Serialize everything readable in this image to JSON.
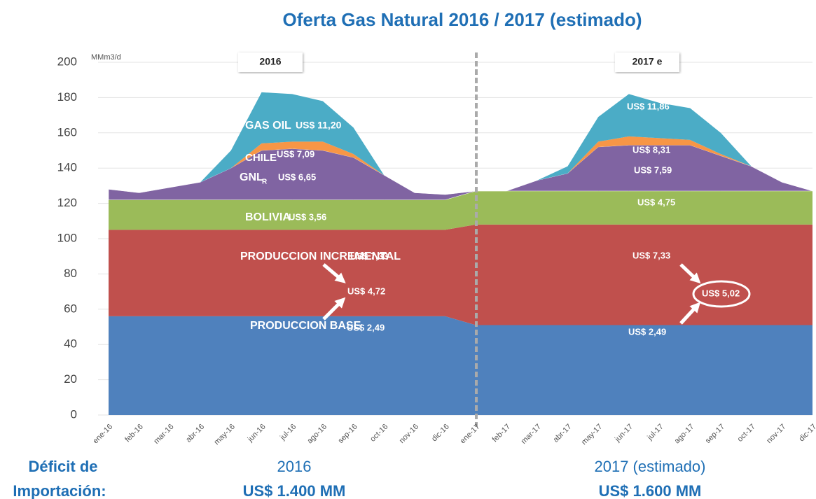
{
  "chart_data": {
    "type": "stacked-area",
    "title": "Oferta Gas Natural 2016 / 2017 (estimado)",
    "categories": [
      "ene-16",
      "feb-16",
      "mar-16",
      "abr-16",
      "may-16",
      "jun-16",
      "jul-16",
      "ago-16",
      "sep-16",
      "oct-16",
      "nov-16",
      "dic-16",
      "ene-17",
      "feb-17",
      "mar-17",
      "abr-17",
      "may-17",
      "jun-17",
      "jul-17",
      "ago-17",
      "sep-17",
      "oct-17",
      "nov-17",
      "dic-17"
    ],
    "series": [
      {
        "name": "PRODUCCION BASE",
        "color": "#4f81bd",
        "values": [
          56,
          56,
          56,
          56,
          56,
          56,
          56,
          56,
          56,
          56,
          56,
          56,
          51,
          51,
          51,
          51,
          51,
          51,
          51,
          51,
          51,
          51,
          51,
          51
        ]
      },
      {
        "name": "PRODUCCION INCREMENTAL",
        "color": "#c0504d",
        "values": [
          49,
          49,
          49,
          49,
          49,
          49,
          49,
          49,
          49,
          49,
          49,
          49,
          57,
          57,
          57,
          57,
          57,
          57,
          57,
          57,
          57,
          57,
          57,
          57
        ]
      },
      {
        "name": "BOLIVIA",
        "color": "#9bbb59",
        "values": [
          17,
          17,
          17,
          17,
          17,
          17,
          17,
          17,
          17,
          17,
          17,
          17,
          19,
          19,
          19,
          19,
          19,
          19,
          19,
          19,
          19,
          19,
          19,
          19
        ]
      },
      {
        "name": "GNL",
        "color": "#8064a2",
        "values": [
          6,
          4,
          7,
          10,
          18,
          28,
          29,
          28,
          24,
          14,
          4,
          3,
          0,
          0,
          6,
          10,
          25,
          26,
          26,
          26,
          20,
          14,
          5,
          0
        ]
      },
      {
        "name": "CHILE",
        "color": "#f79646",
        "values": [
          0,
          0,
          0,
          0,
          0,
          4,
          4,
          5,
          2,
          0,
          0,
          0,
          0,
          0,
          0,
          0,
          3,
          5,
          4,
          3,
          1,
          0,
          0,
          0
        ]
      },
      {
        "name": "GAS OIL",
        "color": "#4bacc6",
        "values": [
          0,
          0,
          0,
          0,
          10,
          29,
          27,
          23,
          15,
          0,
          0,
          0,
          0,
          0,
          0,
          4,
          14,
          24,
          20,
          18,
          12,
          0,
          0,
          0
        ]
      }
    ],
    "ylim": [
      0,
      200
    ],
    "yticks": [
      0,
      20,
      40,
      60,
      80,
      100,
      120,
      140,
      160,
      180,
      200
    ],
    "grid": true,
    "annotations": [
      "2016",
      "2017 e",
      "MMm3/d",
      "R",
      "US$ 11,20",
      "US$ 7,09",
      "US$ 6,65",
      "US$ 3,56",
      "US$ 7,33",
      "US$ 4,72",
      "US$ 2,49",
      "US$ 11,86",
      "US$ 8,31",
      "US$ 7,59",
      "US$ 4,75",
      "US$ 7,33",
      "US$ 5,02",
      "US$ 2,49"
    ],
    "footer": {
      "label": [
        "Déficit de",
        "Importación:"
      ],
      "periods": [
        {
          "name": "2016",
          "amount": "US$ 1.400 MM"
        },
        {
          "name": "2017 (estimado)",
          "amount": "US$ 1.600 MM"
        }
      ]
    }
  }
}
